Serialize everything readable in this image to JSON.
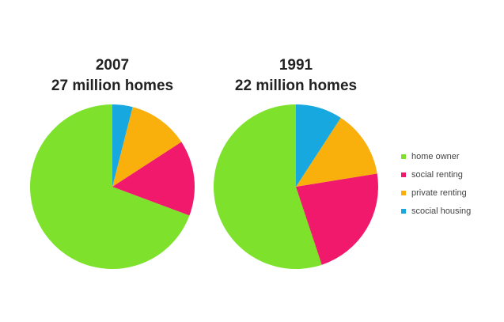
{
  "chart_data": [
    {
      "type": "pie",
      "title": "2007",
      "subtitle": "27 million homes",
      "categories": [
        "home owner",
        "social renting",
        "private renting",
        "scocial housing"
      ],
      "values": [
        70,
        15,
        12,
        4
      ]
    },
    {
      "type": "pie",
      "title": "1991",
      "subtitle": "22 million homes",
      "categories": [
        "home owner",
        "social renting",
        "private renting",
        "scocial housing"
      ],
      "values": [
        54,
        22,
        13,
        9
      ]
    }
  ],
  "legend": {
    "placement": "right",
    "items": [
      {
        "label": "home owner",
        "color": "#7ee22c"
      },
      {
        "label": "social renting",
        "color": "#f0196b"
      },
      {
        "label": "private renting",
        "color": "#f9b00c"
      },
      {
        "label": "scocial housing",
        "color": "#18a8e0"
      }
    ]
  }
}
